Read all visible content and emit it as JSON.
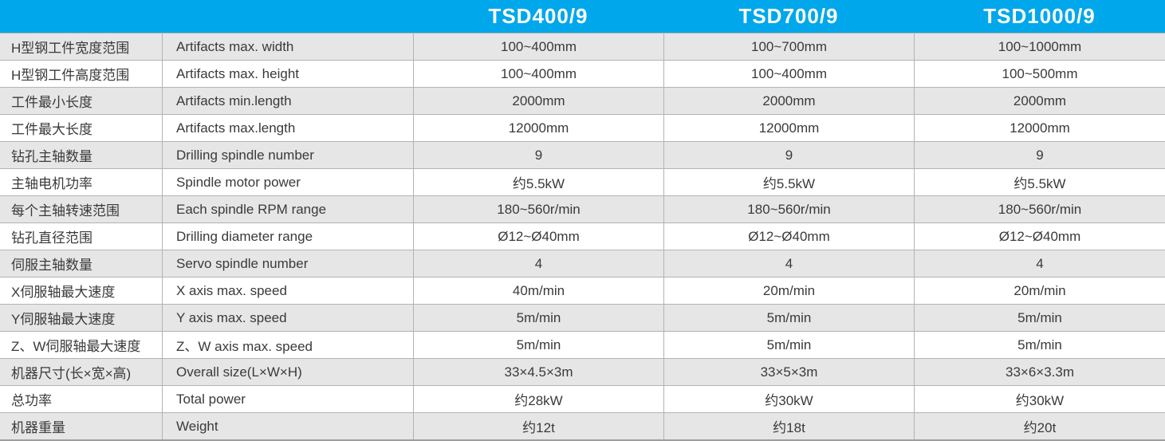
{
  "theme": {
    "header_bg": "#00a7eb",
    "header_text": "#ffffff",
    "row_alt_bg": "#e6e6e6",
    "row_bg": "#ffffff",
    "border_color": "#b3b3b3",
    "body_text": "#3a3a3a"
  },
  "table": {
    "models": [
      "TSD400/9",
      "TSD700/9",
      "TSD1000/9"
    ],
    "rows": [
      {
        "cn": "H型钢工件宽度范围",
        "en": "Artifacts max. width",
        "values": [
          "100~400mm",
          "100~700mm",
          "100~1000mm"
        ]
      },
      {
        "cn": "H型钢工件高度范围",
        "en": "Artifacts max. height",
        "values": [
          "100~400mm",
          "100~400mm",
          "100~500mm"
        ]
      },
      {
        "cn": "工件最小长度",
        "en": "Artifacts min.length",
        "values": [
          "2000mm",
          "2000mm",
          "2000mm"
        ]
      },
      {
        "cn": "工件最大长度",
        "en": "Artifacts max.length",
        "values": [
          "12000mm",
          "12000mm",
          "12000mm"
        ]
      },
      {
        "cn": "钻孔主轴数量",
        "en": "Drilling spindle number",
        "values": [
          "9",
          "9",
          "9"
        ]
      },
      {
        "cn": "主轴电机功率",
        "en": "Spindle motor power",
        "values": [
          "约5.5kW",
          "约5.5kW",
          "约5.5kW"
        ]
      },
      {
        "cn": "每个主轴转速范围",
        "en": "Each spindle RPM range",
        "values": [
          "180~560r/min",
          "180~560r/min",
          "180~560r/min"
        ]
      },
      {
        "cn": "钻孔直径范围",
        "en": "Drilling diameter range",
        "values": [
          "Ø12~Ø40mm",
          "Ø12~Ø40mm",
          "Ø12~Ø40mm"
        ]
      },
      {
        "cn": "伺服主轴数量",
        "en": "Servo spindle number",
        "values": [
          "4",
          "4",
          "4"
        ]
      },
      {
        "cn": "X伺服轴最大速度",
        "en": "X axis max. speed",
        "values": [
          "40m/min",
          "20m/min",
          "20m/min"
        ]
      },
      {
        "cn": "Y伺服轴最大速度",
        "en": "Y axis max. speed",
        "values": [
          "5m/min",
          "5m/min",
          "5m/min"
        ]
      },
      {
        "cn": "Z、W伺服轴最大速度",
        "en": "Z、W axis max. speed",
        "values": [
          "5m/min",
          "5m/min",
          "5m/min"
        ]
      },
      {
        "cn": "机器尺寸(长×宽×高)",
        "en": "Overall size(L×W×H)",
        "values": [
          "33×4.5×3m",
          "33×5×3m",
          "33×6×3.3m"
        ]
      },
      {
        "cn": "总功率",
        "en": "Total power",
        "values": [
          "约28kW",
          "约30kW",
          "约30kW"
        ]
      },
      {
        "cn": "机器重量",
        "en": "Weight",
        "values": [
          "约12t",
          "约18t",
          "约20t"
        ]
      }
    ]
  }
}
